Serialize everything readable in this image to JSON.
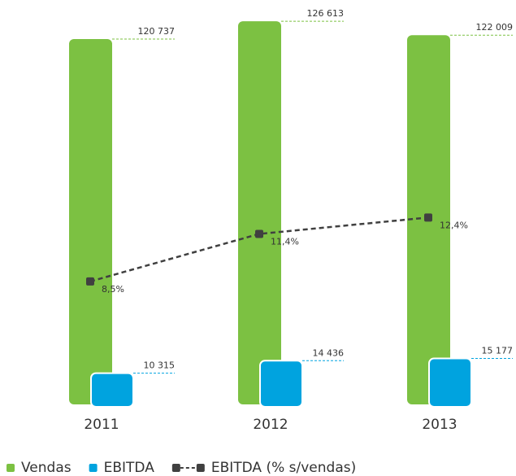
{
  "chart_data": {
    "type": "bar",
    "categories": [
      "2011",
      "2012",
      "2013"
    ],
    "series": [
      {
        "name": "Vendas",
        "color": "#7cc142",
        "values": [
          120737,
          126613,
          122009
        ],
        "value_labels": [
          "120 737",
          "126 613",
          "122 009"
        ]
      },
      {
        "name": "EBITDA",
        "color": "#00a3df",
        "values": [
          10315,
          14436,
          15177
        ],
        "value_labels": [
          "10 315",
          "14 436",
          "15 177"
        ]
      },
      {
        "name": "EBITDA (% s/vendas)",
        "type": "line",
        "axis": "y2",
        "color": "#404040",
        "values": [
          8.5,
          11.4,
          12.4
        ],
        "value_labels": [
          "8,5%",
          "11,4%",
          "12,4%"
        ]
      }
    ],
    "ylim": [
      0,
      130000
    ],
    "y2lim": [
      1,
      25
    ],
    "legend": "bottom"
  }
}
